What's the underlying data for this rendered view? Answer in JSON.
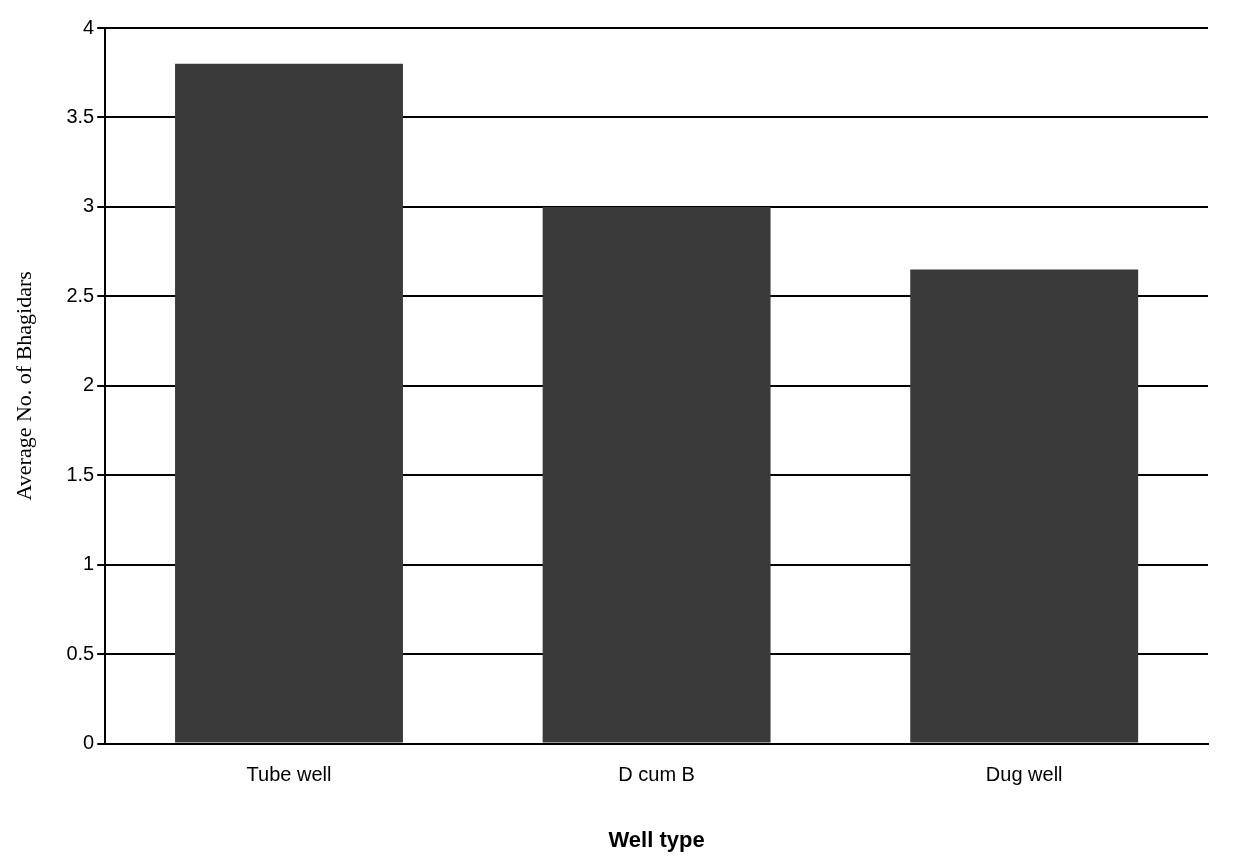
{
  "chart_data": {
    "type": "bar",
    "xlabel": "Well type",
    "ylabel": "Average No. of Bhagidars",
    "categories": [
      "Tube well",
      "D cum B",
      "Dug well"
    ],
    "values": [
      3.8,
      3.0,
      2.65
    ],
    "color": "#3a3a3a",
    "ylim": [
      0,
      4
    ],
    "yticks": [
      0,
      0.5,
      1,
      1.5,
      2,
      2.5,
      3,
      3.5,
      4
    ],
    "grid": "y"
  }
}
